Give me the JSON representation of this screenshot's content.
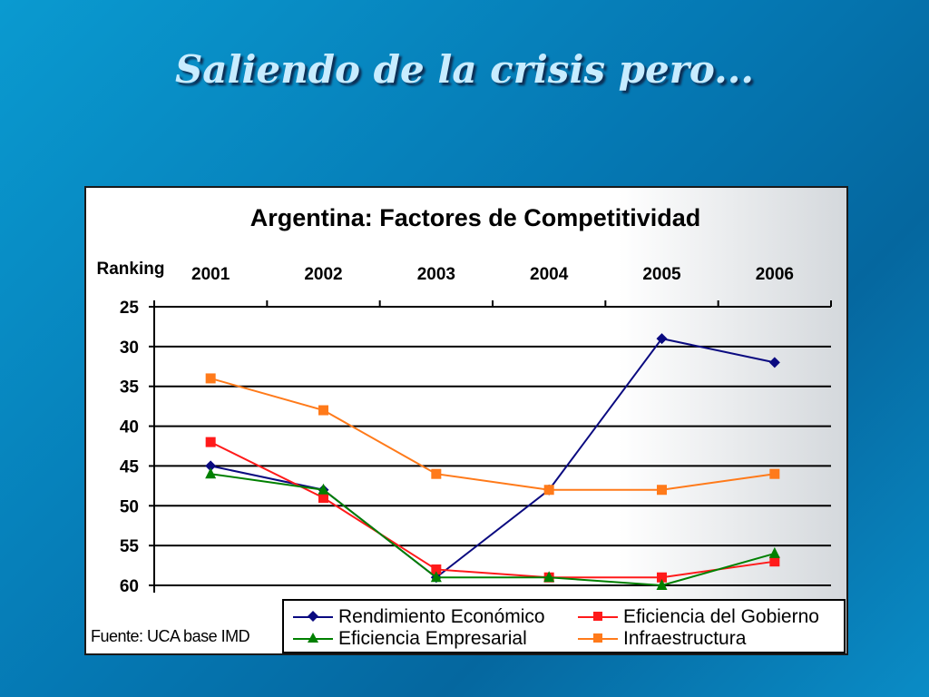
{
  "slide": {
    "title": "Saliendo de la crisis pero..."
  },
  "chart_data": {
    "type": "line",
    "title": "Argentina: Factores de Competitividad",
    "ylabel": "Ranking",
    "xlabel": "",
    "source_note": "Fuente: UCA base IMD",
    "categories": [
      "2001",
      "2002",
      "2003",
      "2004",
      "2005",
      "2006"
    ],
    "x_axis_position": "top",
    "y_inverted": true,
    "ylim": [
      25,
      60
    ],
    "yticks": [
      25,
      30,
      35,
      40,
      45,
      50,
      55,
      60
    ],
    "grid": true,
    "legend_position": "bottom-right",
    "series": [
      {
        "name": "Rendimiento Económico",
        "color": "#0a0a80",
        "marker": "diamond",
        "values": [
          45,
          48,
          59,
          48,
          29,
          32
        ]
      },
      {
        "name": "Eficiencia del Gobierno",
        "color": "#ff1a1a",
        "marker": "square",
        "values": [
          42,
          49,
          58,
          59,
          59,
          57
        ]
      },
      {
        "name": "Eficiencia Empresarial",
        "color": "#008000",
        "marker": "triangle",
        "values": [
          46,
          48,
          59,
          59,
          60,
          56
        ]
      },
      {
        "name": "Infraestructura",
        "color": "#ff7a1a",
        "marker": "square",
        "values": [
          34,
          38,
          46,
          48,
          48,
          46
        ]
      }
    ]
  }
}
